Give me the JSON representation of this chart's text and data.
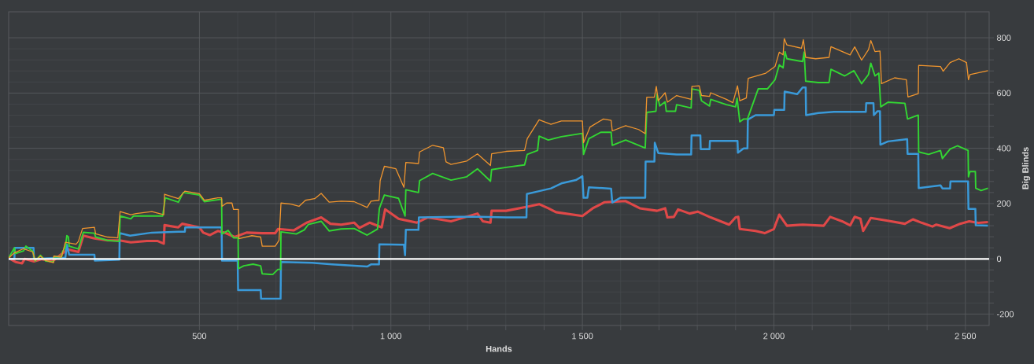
{
  "chart_data": {
    "type": "line",
    "xlabel": "Hands",
    "ylabel": "Big Blinds",
    "xlim": [
      2,
      2562
    ],
    "ylim": [
      -241,
      894
    ],
    "xticks": [
      {
        "value": 500,
        "label": "500"
      },
      {
        "value": 1000,
        "label": "1 000"
      },
      {
        "value": 1500,
        "label": "1 500"
      },
      {
        "value": 2000,
        "label": "2 000"
      },
      {
        "value": 2500,
        "label": "2 500"
      }
    ],
    "yticks": [
      -200,
      0,
      200,
      400,
      600,
      800
    ],
    "grid": true,
    "ref_lines": [
      {
        "axis": "y",
        "value": 0,
        "color": "#ffffff"
      }
    ],
    "series": [
      {
        "color": "#e04848",
        "x": [
          2,
          20,
          37,
          44,
          68,
          89,
          116,
          147,
          157,
          184,
          197,
          226,
          260,
          291,
          321,
          363,
          390,
          407,
          409,
          445,
          455,
          500,
          510,
          527,
          548,
          568,
          592,
          623,
          664,
          698,
          705,
          746,
          780,
          818,
          842,
          870,
          904,
          918,
          945,
          976,
          985,
          1020,
          1068,
          1096,
          1157,
          1226,
          1240,
          1260,
          1263,
          1301,
          1353,
          1387,
          1411,
          1431,
          1500,
          1527,
          1558,
          1613,
          1650,
          1695,
          1716,
          1722,
          1739,
          1750,
          1780,
          1801,
          1835,
          1883,
          1900,
          1907,
          1911,
          1952,
          1976,
          2000,
          2014,
          2034,
          2075,
          2130,
          2147,
          2178,
          2199,
          2211,
          2226,
          2233,
          2253,
          2294,
          2342,
          2363,
          2387,
          2414,
          2424,
          2459,
          2486,
          2510,
          2534,
          2559
        ],
        "values": [
          3,
          -11,
          -16,
          0,
          -9,
          -1,
          -9,
          25,
          34,
          25,
          84,
          74,
          67,
          67,
          60,
          65,
          65,
          55,
          122,
          114,
          127,
          114,
          95,
          86,
          101,
          94,
          79,
          95,
          93,
          93,
          108,
          103,
          131,
          150,
          127,
          124,
          131,
          112,
          131,
          114,
          179,
          145,
          131,
          150,
          136,
          164,
          136,
          131,
          174,
          174,
          188,
          198,
          183,
          169,
          155,
          183,
          205,
          209,
          183,
          174,
          183,
          150,
          152,
          179,
          164,
          171,
          150,
          124,
          150,
          152,
          108,
          101,
          93,
          108,
          160,
          120,
          124,
          120,
          152,
          136,
          121,
          152,
          145,
          101,
          148,
          139,
          127,
          143,
          130,
          117,
          124,
          111,
          127,
          136,
          130,
          133
        ]
      },
      {
        "color": "#3a9ad9",
        "x": [
          2,
          17,
          18,
          67,
          68,
          150,
          154,
          160,
          226,
          227,
          291,
          292,
          319,
          376,
          445,
          462,
          463,
          558,
          559,
          600,
          601,
          660,
          661,
          712,
          713,
          794,
          846,
          938,
          948,
          969,
          970,
          1034,
          1037,
          1039,
          1072,
          1073,
          1178,
          1233,
          1301,
          1354,
          1355,
          1387,
          1418,
          1445,
          1483,
          1500,
          1503,
          1513,
          1517,
          1575,
          1578,
          1599,
          1664,
          1665,
          1688,
          1689,
          1698,
          1746,
          1784,
          1785,
          1808,
          1809,
          1832,
          1833,
          1905,
          1906,
          1921,
          1931,
          1932,
          1952,
          2000,
          2001,
          2027,
          2028,
          2061,
          2075,
          2083,
          2084,
          2116,
          2157,
          2240,
          2241,
          2260,
          2261,
          2270,
          2277,
          2278,
          2298,
          2348,
          2349,
          2377,
          2378,
          2435,
          2440,
          2460,
          2461,
          2507,
          2508,
          2526,
          2527,
          2559
        ],
        "values": [
          0,
          0,
          40,
          40,
          0,
          4,
          51,
          15,
          15,
          -6,
          -3,
          93,
          84,
          95,
          98,
          98,
          114,
          114,
          -6,
          -6,
          -113,
          -113,
          -144,
          -144,
          -11,
          -14,
          -20,
          -28,
          -20,
          -20,
          53,
          51,
          13,
          105,
          105,
          150,
          152,
          152,
          150,
          150,
          235,
          245,
          255,
          273,
          285,
          299,
          221,
          221,
          259,
          254,
          204,
          221,
          221,
          352,
          352,
          420,
          383,
          378,
          378,
          447,
          447,
          397,
          397,
          427,
          427,
          384,
          400,
          400,
          504,
          520,
          520,
          539,
          539,
          605,
          596,
          620,
          620,
          520,
          528,
          532,
          532,
          563,
          563,
          520,
          534,
          534,
          413,
          425,
          433,
          380,
          380,
          256,
          266,
          255,
          255,
          280,
          280,
          181,
          181,
          122,
          120
        ]
      },
      {
        "color": "#33d633",
        "x": [
          2,
          17,
          19,
          41,
          47,
          65,
          71,
          85,
          99,
          119,
          120,
          140,
          143,
          150,
          154,
          158,
          160,
          184,
          197,
          226,
          229,
          260,
          291,
          293,
          321,
          328,
          404,
          411,
          445,
          458,
          500,
          513,
          558,
          559,
          575,
          589,
          601,
          602,
          616,
          640,
          660,
          664,
          691,
          705,
          712,
          713,
          753,
          774,
          784,
          818,
          839,
          870,
          904,
          938,
          965,
          970,
          983,
          1020,
          1037,
          1039,
          1072,
          1075,
          1109,
          1157,
          1198,
          1226,
          1260,
          1263,
          1301,
          1349,
          1356,
          1383,
          1387,
          1411,
          1445,
          1500,
          1503,
          1517,
          1548,
          1575,
          1578,
          1613,
          1647,
          1664,
          1668,
          1692,
          1695,
          1702,
          1716,
          1719,
          1743,
          1746,
          1784,
          1786,
          1805,
          1811,
          1832,
          1835,
          1876,
          1900,
          1904,
          1911,
          1921,
          1931,
          1959,
          1983,
          2003,
          2014,
          2024,
          2029,
          2034,
          2075,
          2079,
          2083,
          2116,
          2144,
          2149,
          2185,
          2209,
          2229,
          2247,
          2253,
          2264,
          2274,
          2279,
          2298,
          2342,
          2349,
          2377,
          2378,
          2404,
          2435,
          2440,
          2460,
          2479,
          2507,
          2508,
          2512,
          2526,
          2527,
          2541,
          2559
        ],
        "values": [
          3,
          40,
          19,
          29,
          46,
          27,
          -8,
          13,
          -8,
          -11,
          8,
          8,
          27,
          41,
          84,
          79,
          46,
          36,
          96,
          93,
          79,
          67,
          63,
          155,
          145,
          155,
          155,
          221,
          205,
          240,
          231,
          207,
          216,
          90,
          103,
          76,
          76,
          -35,
          -25,
          -19,
          -25,
          -54,
          -57,
          -38,
          -38,
          98,
          90,
          105,
          124,
          136,
          101,
          108,
          110,
          86,
          108,
          183,
          231,
          219,
          155,
          250,
          240,
          283,
          309,
          285,
          297,
          326,
          281,
          323,
          331,
          340,
          378,
          392,
          444,
          430,
          442,
          454,
          378,
          435,
          458,
          458,
          411,
          430,
          411,
          401,
          530,
          534,
          596,
          553,
          568,
          534,
          534,
          558,
          546,
          615,
          610,
          572,
          553,
          577,
          558,
          550,
          581,
          496,
          506,
          506,
          615,
          615,
          648,
          702,
          691,
          750,
          724,
          714,
          748,
          643,
          638,
          638,
          686,
          662,
          681,
          634,
          667,
          708,
          662,
          672,
          550,
          567,
          563,
          506,
          520,
          387,
          378,
          392,
          363,
          397,
          409,
          392,
          297,
          316,
          316,
          256,
          247,
          256
        ]
      },
      {
        "color": "#f0952e",
        "x": [
          2,
          17,
          41,
          65,
          71,
          85,
          99,
          119,
          120,
          140,
          150,
          178,
          184,
          195,
          226,
          229,
          260,
          287,
          293,
          321,
          335,
          376,
          407,
          409,
          445,
          462,
          500,
          513,
          548,
          558,
          559,
          571,
          585,
          589,
          602,
          603,
          637,
          660,
          664,
          698,
          708,
          713,
          739,
          760,
          777,
          801,
          818,
          839,
          870,
          904,
          938,
          948,
          969,
          972,
          983,
          1013,
          1034,
          1039,
          1072,
          1075,
          1109,
          1137,
          1144,
          1157,
          1198,
          1226,
          1260,
          1263,
          1301,
          1349,
          1356,
          1387,
          1418,
          1445,
          1500,
          1503,
          1520,
          1555,
          1575,
          1578,
          1613,
          1647,
          1664,
          1668,
          1688,
          1693,
          1698,
          1716,
          1722,
          1746,
          1784,
          1786,
          1805,
          1811,
          1832,
          1835,
          1876,
          1893,
          1905,
          1911,
          1928,
          1933,
          1979,
          2003,
          2014,
          2024,
          2027,
          2034,
          2072,
          2077,
          2083,
          2109,
          2144,
          2149,
          2199,
          2211,
          2229,
          2247,
          2253,
          2264,
          2277,
          2281,
          2315,
          2346,
          2350,
          2377,
          2378,
          2435,
          2442,
          2460,
          2483,
          2503,
          2508,
          2512,
          2559
        ],
        "values": [
          3,
          22,
          37,
          25,
          -6,
          10,
          -6,
          -14,
          10,
          6,
          60,
          53,
          63,
          110,
          114,
          91,
          79,
          76,
          171,
          160,
          164,
          171,
          160,
          234,
          218,
          245,
          236,
          212,
          221,
          221,
          190,
          202,
          202,
          179,
          179,
          73,
          84,
          79,
          46,
          46,
          67,
          202,
          198,
          190,
          212,
          218,
          237,
          205,
          209,
          207,
          186,
          209,
          212,
          283,
          335,
          326,
          259,
          349,
          345,
          387,
          411,
          402,
          351,
          342,
          354,
          380,
          338,
          380,
          389,
          392,
          435,
          503,
          487,
          499,
          499,
          420,
          477,
          506,
          501,
          463,
          482,
          468,
          453,
          585,
          585,
          624,
          572,
          601,
          567,
          591,
          577,
          624,
          626,
          591,
          588,
          601,
          577,
          565,
          626,
          572,
          582,
          653,
          672,
          696,
          748,
          738,
          797,
          774,
          762,
          793,
          729,
          724,
          729,
          768,
          738,
          767,
          719,
          757,
          790,
          750,
          752,
          634,
          655,
          648,
          586,
          598,
          700,
          696,
          679,
          710,
          724,
          710,
          648,
          667,
          681
        ]
      }
    ]
  }
}
